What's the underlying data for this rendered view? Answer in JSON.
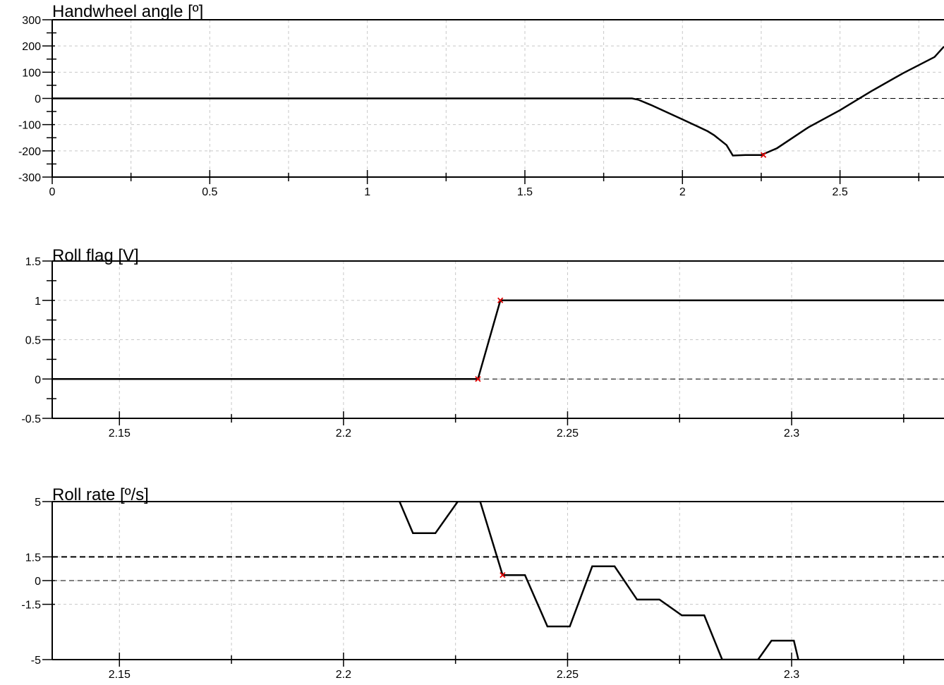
{
  "chart_data": [
    {
      "type": "line",
      "title": "Handwheel angle  [º]",
      "xlim": [
        0,
        2.83
      ],
      "ylim": [
        -300,
        300
      ],
      "x_ticks": [
        0,
        0.5,
        1,
        1.5,
        2,
        2.5
      ],
      "x_tick_labels": [
        "0",
        "0.5",
        "1",
        "1.5",
        "2",
        "2.5"
      ],
      "x_minor_ticks": [
        0.25,
        0.75,
        1.25,
        1.75,
        2.25,
        2.75
      ],
      "y_ticks": [
        -300,
        -200,
        -100,
        0,
        100,
        200,
        300
      ],
      "y_tick_labels": [
        "-300",
        "-200",
        "-100",
        "0",
        "100",
        "200",
        "300"
      ],
      "y_minor_ticks": [
        -250,
        -150,
        -50,
        50,
        150,
        250
      ],
      "grid": true,
      "reference_lines": [
        {
          "y": 0,
          "style": "dashed"
        }
      ],
      "series": [
        {
          "x": [
            0,
            1.84,
            1.86,
            1.9,
            2.0,
            2.05,
            2.08,
            2.1,
            2.14,
            2.16,
            2.2,
            2.25,
            2.3,
            2.4,
            2.5,
            2.6,
            2.7,
            2.8,
            2.83
          ],
          "y": [
            0,
            0,
            -5,
            -25,
            -80,
            -108,
            -125,
            -140,
            -178,
            -218,
            -216,
            -216,
            -190,
            -110,
            -45,
            28,
            96,
            158,
            198
          ]
        }
      ],
      "markers": [
        {
          "x": 2.257,
          "y": -216,
          "symbol": "x"
        }
      ]
    },
    {
      "type": "line",
      "title": "Roll flag [V]",
      "xlim": [
        2.135,
        2.334
      ],
      "ylim": [
        -0.5,
        1.5
      ],
      "x_ticks": [
        2.15,
        2.2,
        2.25,
        2.3
      ],
      "x_tick_labels": [
        "2.15",
        "2.2",
        "2.25",
        "2.3"
      ],
      "x_minor_ticks": [
        2.175,
        2.225,
        2.275,
        2.325
      ],
      "y_ticks": [
        -0.5,
        0,
        0.5,
        1,
        1.5
      ],
      "y_tick_labels": [
        "-0.5",
        "0",
        "0.5",
        "1",
        "1.5"
      ],
      "y_minor_ticks": [
        -0.25,
        0.25,
        0.75,
        1.25
      ],
      "grid": true,
      "reference_lines": [
        {
          "y": 0,
          "style": "dashed"
        }
      ],
      "series": [
        {
          "x": [
            2.135,
            2.23,
            2.235,
            2.334
          ],
          "y": [
            0,
            0,
            1,
            1
          ]
        }
      ],
      "markers": [
        {
          "x": 2.23,
          "y": 0,
          "symbol": "x"
        },
        {
          "x": 2.235,
          "y": 1,
          "symbol": "x"
        }
      ]
    },
    {
      "type": "line",
      "title": "Roll rate [º/s]",
      "xlim": [
        2.135,
        2.334
      ],
      "ylim": [
        -5,
        5
      ],
      "x_ticks": [
        2.15,
        2.2,
        2.25,
        2.3
      ],
      "x_tick_labels": [
        "2.15",
        "2.2",
        "2.25",
        "2.3"
      ],
      "x_minor_ticks": [
        2.175,
        2.225,
        2.275,
        2.325
      ],
      "y_ticks": [
        -5,
        -1.5,
        0,
        1.5,
        5
      ],
      "y_tick_labels": [
        "-5",
        "-1.5",
        "0",
        "1.5",
        "5"
      ],
      "y_minor_ticks": [],
      "grid": true,
      "reference_lines": [
        {
          "y": 0,
          "style": "dashed"
        },
        {
          "y": 1.5,
          "style": "dashed-bold"
        }
      ],
      "series": [
        {
          "x": [
            2.2125,
            2.2155,
            2.2205,
            2.2255,
            2.2305,
            2.2355,
            2.2405,
            2.2455,
            2.2505,
            2.2555,
            2.2605,
            2.2655,
            2.2705,
            2.2755,
            2.2805,
            2.2845,
            2.2925,
            2.2955,
            2.3005,
            2.3015
          ],
          "y": [
            5,
            3,
            3,
            5,
            5,
            0.35,
            0.35,
            -2.9,
            -2.9,
            0.9,
            0.9,
            -1.2,
            -1.2,
            -2.2,
            -2.2,
            -5,
            -5,
            -3.8,
            -3.8,
            -5
          ]
        }
      ],
      "markers": [
        {
          "x": 2.2355,
          "y": 0.35,
          "symbol": "x"
        }
      ]
    }
  ]
}
